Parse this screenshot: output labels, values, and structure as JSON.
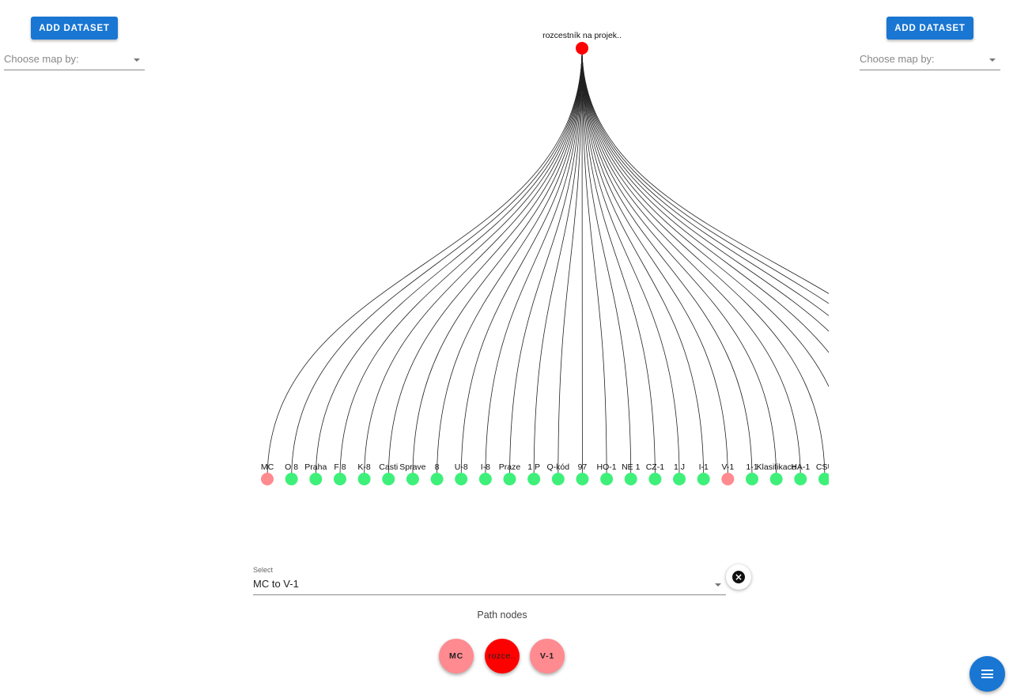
{
  "left_panel": {
    "add_dataset_label": "ADD DATASET",
    "map_select_placeholder": "Choose map by:"
  },
  "right_panel": {
    "add_dataset_label": "ADD DATASET",
    "map_select_placeholder": "Choose map by:"
  },
  "tree": {
    "root": {
      "label": "rozcestník na projek..",
      "color": "#ff0000"
    },
    "leaves": [
      {
        "label": "MC",
        "highlighted": true
      },
      {
        "label": "O 8",
        "highlighted": false
      },
      {
        "label": "Praha",
        "highlighted": false
      },
      {
        "label": "F 8",
        "highlighted": false
      },
      {
        "label": "K-8",
        "highlighted": false
      },
      {
        "label": "Casti",
        "highlighted": false
      },
      {
        "label": "Sprave",
        "highlighted": false
      },
      {
        "label": "8",
        "highlighted": false
      },
      {
        "label": "U-8",
        "highlighted": false
      },
      {
        "label": "I-8",
        "highlighted": false
      },
      {
        "label": "Praze",
        "highlighted": false
      },
      {
        "label": "1 P",
        "highlighted": false
      },
      {
        "label": "Q-kód",
        "highlighted": false
      },
      {
        "label": "97",
        "highlighted": false
      },
      {
        "label": "HO-1",
        "highlighted": false
      },
      {
        "label": "NE 1",
        "highlighted": false
      },
      {
        "label": "CZ-1",
        "highlighted": false
      },
      {
        "label": "1 J",
        "highlighted": false
      },
      {
        "label": "I-1",
        "highlighted": false
      },
      {
        "label": "V-1",
        "highlighted": true
      },
      {
        "label": "1-1",
        "highlighted": false
      },
      {
        "label": "Klasifikace",
        "highlighted": false
      },
      {
        "label": "HA-1",
        "highlighted": false
      },
      {
        "label": "CSU",
        "highlighted": false
      }
    ],
    "colors": {
      "leaf": "#3ef07a",
      "highlight": "#ff8a8f",
      "edge": "#222222"
    }
  },
  "path_select": {
    "label": "Select",
    "value": "MC to V-1"
  },
  "clear_icon": "close-circle-icon",
  "path_nodes": {
    "title": "Path nodes",
    "nodes": [
      {
        "label": "MC",
        "color": "#ff8a8f"
      },
      {
        "label": "rozce..",
        "color": "#ff0000"
      },
      {
        "label": "V-1",
        "color": "#ff8a8f"
      }
    ]
  },
  "fab_icon": "menu-icon"
}
